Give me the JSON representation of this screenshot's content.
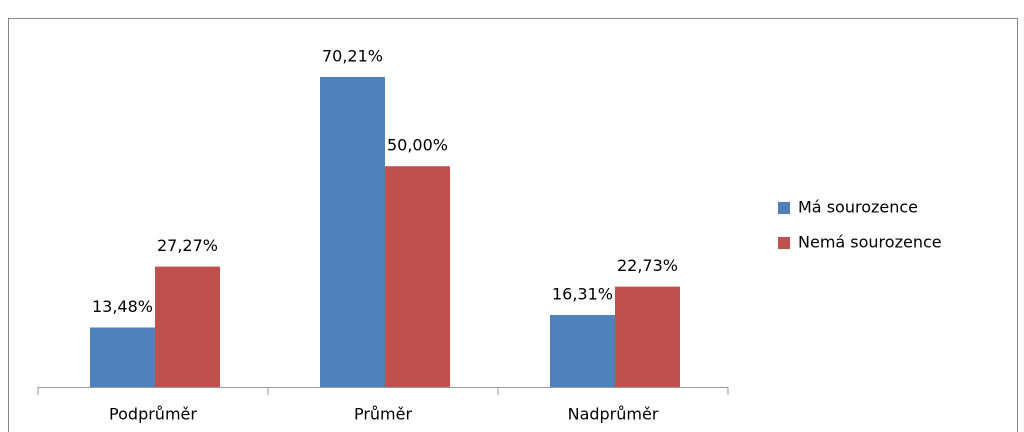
{
  "chart_data": {
    "type": "bar",
    "categories": [
      "Podprůměr",
      "Průměr",
      "Nadprůměr"
    ],
    "series": [
      {
        "name": "Má sourozence",
        "color": "#4f81bd",
        "values": [
          13.48,
          70.21,
          16.31
        ],
        "value_labels": [
          "13,48%",
          "70,21%",
          "16,31%"
        ]
      },
      {
        "name": "Nemá sourozence",
        "color": "#c0504d",
        "values": [
          27.27,
          50.0,
          22.73
        ],
        "value_labels": [
          "27,27%",
          "50,00%",
          "22,73%"
        ]
      }
    ],
    "legend": "right"
  }
}
